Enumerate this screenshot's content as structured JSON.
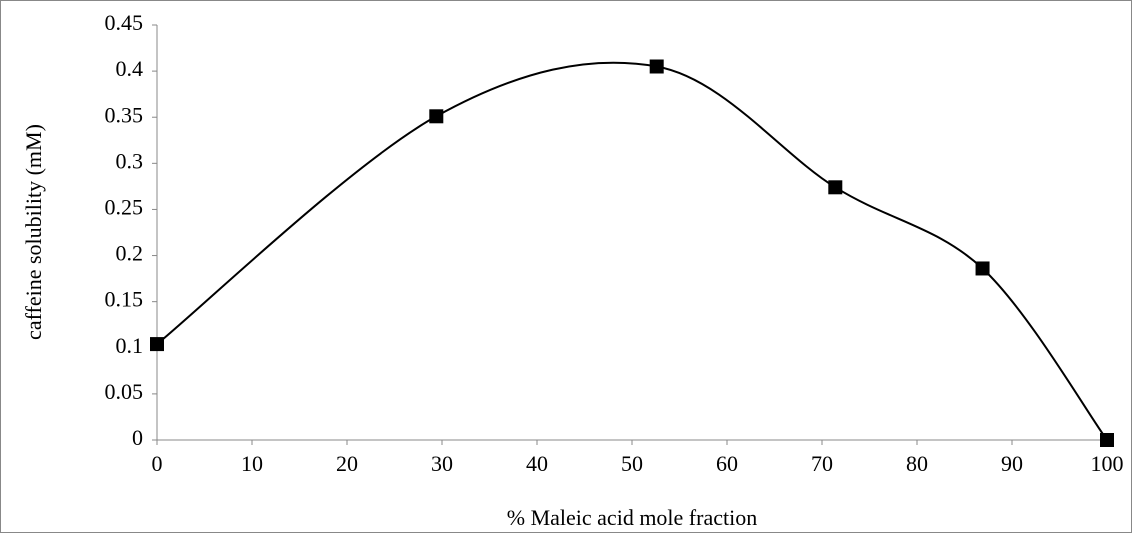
{
  "chart_data": {
    "type": "line",
    "smooth": true,
    "marker": "square",
    "x_label": "% Maleic acid mole fraction",
    "y_label": "caffeine solubility (mM)",
    "x": [
      0,
      29.4,
      52.6,
      71.4,
      86.9,
      100
    ],
    "values": [
      0.104,
      0.351,
      0.405,
      0.274,
      0.186,
      0
    ],
    "color": "#000000",
    "xlim": [
      0,
      100
    ],
    "xticks": [
      0,
      10,
      20,
      30,
      40,
      50,
      60,
      70,
      80,
      90,
      100
    ],
    "ylim": [
      0,
      0.45
    ],
    "yticks": [
      0,
      0.05,
      0.1,
      0.15,
      0.2,
      0.25,
      0.3,
      0.35,
      0.4,
      0.45
    ],
    "grid": false
  }
}
